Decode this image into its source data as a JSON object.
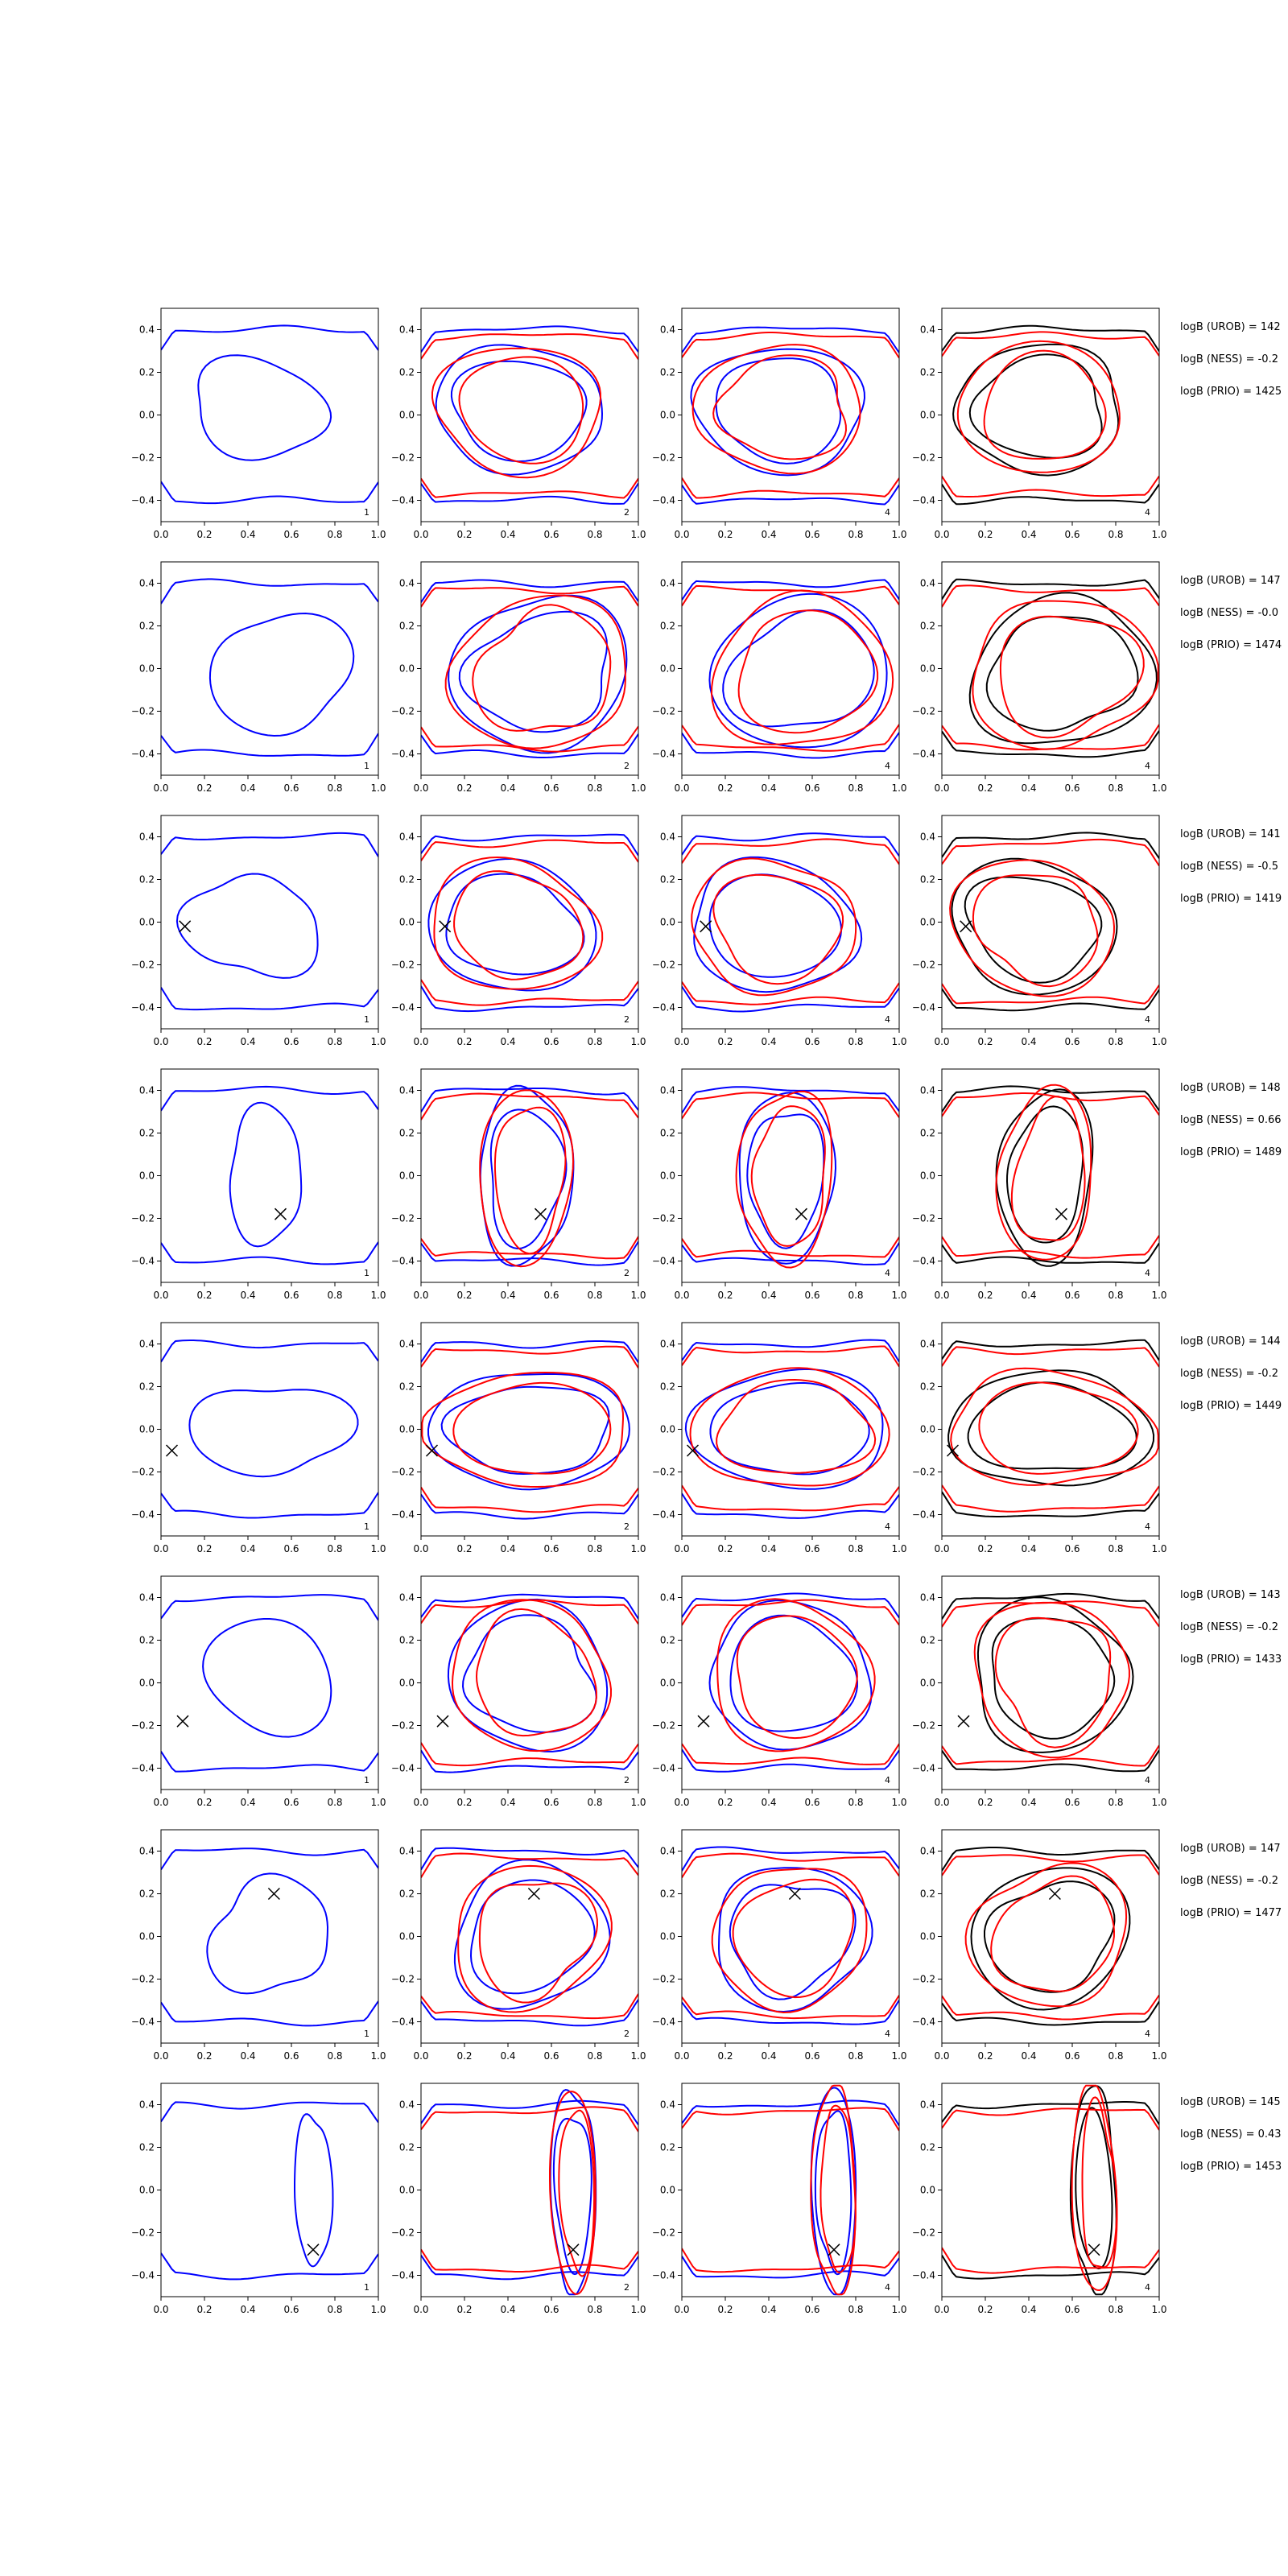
{
  "figure": {
    "background": "#ffffff"
  },
  "colors": {
    "blue": "#0000ff",
    "red": "#ff0000",
    "black": "#000000"
  },
  "chart_data": {
    "type": "line",
    "description_of_grid": "8 rows x 4 columns of contour panels plus log-evidence annotations",
    "xlim": [
      0,
      1.0
    ],
    "ylim": [
      -0.5,
      0.5
    ],
    "xticks": [
      "0.0",
      "0.2",
      "0.4",
      "0.6",
      "0.8",
      "1.0"
    ],
    "yticks": [
      "-0.4",
      "-0.2",
      "0.0",
      "0.2",
      "0.4"
    ],
    "column_tags": [
      "1",
      "2",
      "4",
      "4"
    ],
    "column_colors": [
      [
        "blue"
      ],
      [
        "blue",
        "red"
      ],
      [
        "blue",
        "red"
      ],
      [
        "black",
        "red"
      ]
    ],
    "rows": [
      {
        "marker": null,
        "annotations": [
          "logB (UROB) = 142",
          "logB (NESS) = -0.2",
          "logB (PRIO) = 1425"
        ],
        "blob": {
          "cx": 0.45,
          "cy": 0.03,
          "rx": 0.32,
          "ry": 0.22
        }
      },
      {
        "marker": null,
        "annotations": [
          "logB (UROB) = 147",
          "logB (NESS) = -0.0",
          "logB (PRIO) = 1474"
        ],
        "blob": {
          "cx": 0.55,
          "cy": -0.02,
          "rx": 0.32,
          "ry": 0.28
        }
      },
      {
        "marker": [
          0.11,
          -0.02
        ],
        "annotations": [
          "logB (UROB) = 141",
          "logB (NESS) = -0.5",
          "logB (PRIO) = 1419"
        ],
        "blob": {
          "cx": 0.42,
          "cy": -0.02,
          "rx": 0.3,
          "ry": 0.24
        }
      },
      {
        "marker": [
          0.55,
          -0.18
        ],
        "annotations": [
          "logB (UROB) = 148",
          "logB (NESS) = 0.66",
          "logB (PRIO) = 1489"
        ],
        "blob": {
          "cx": 0.48,
          "cy": 0.0,
          "rx": 0.18,
          "ry": 0.3
        }
      },
      {
        "marker": [
          0.05,
          -0.1
        ],
        "annotations": [
          "logB (UROB) = 144",
          "logB (NESS) = -0.2",
          "logB (PRIO) = 1449"
        ],
        "blob": {
          "cx": 0.5,
          "cy": 0.0,
          "rx": 0.35,
          "ry": 0.22
        }
      },
      {
        "marker": [
          0.1,
          -0.18
        ],
        "annotations": [
          "logB (UROB) = 143",
          "logB (NESS) = -0.2",
          "logB (PRIO) = 1433"
        ],
        "blob": {
          "cx": 0.5,
          "cy": 0.03,
          "rx": 0.3,
          "ry": 0.26
        }
      },
      {
        "marker": [
          0.52,
          0.2
        ],
        "annotations": [
          "logB (UROB) = 147",
          "logB (NESS) = -0.2",
          "logB (PRIO) = 1477"
        ],
        "blob": {
          "cx": 0.5,
          "cy": 0.0,
          "rx": 0.28,
          "ry": 0.26
        }
      },
      {
        "marker": [
          0.7,
          -0.28
        ],
        "annotations": [
          "logB (UROB) = 145",
          "logB (NESS) = 0.43",
          "logB (PRIO) = 1453"
        ],
        "blob": {
          "cx": 0.7,
          "cy": 0.0,
          "rx": 0.08,
          "ry": 0.38
        }
      }
    ]
  }
}
